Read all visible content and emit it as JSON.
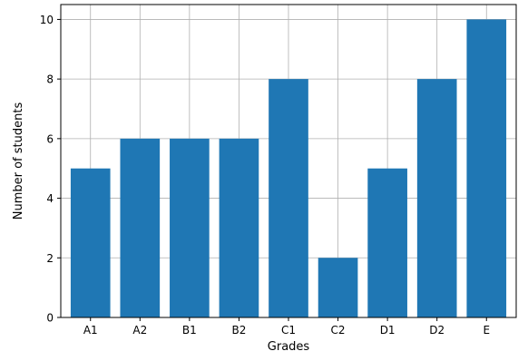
{
  "chart_data": {
    "type": "bar",
    "title": "",
    "xlabel": "Grades",
    "ylabel": "Number of students",
    "categories": [
      "A1",
      "A2",
      "B1",
      "B2",
      "C1",
      "C2",
      "D1",
      "D2",
      "E"
    ],
    "values": [
      5,
      6,
      6,
      6,
      8,
      2,
      5,
      8,
      10
    ],
    "ylim": [
      0,
      10.5
    ],
    "yticks": [
      0,
      2,
      4,
      6,
      8,
      10
    ],
    "grid": true,
    "bar_color": "#1f77b4",
    "grid_color": "#b0b0b0"
  }
}
